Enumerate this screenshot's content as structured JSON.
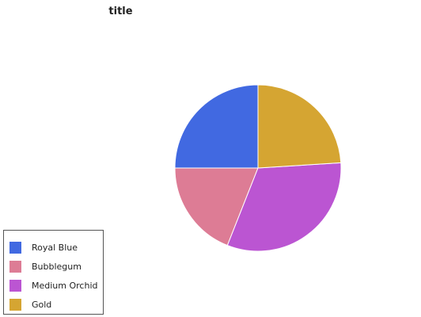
{
  "chart_data": {
    "type": "pie",
    "title": "title",
    "slices": [
      {
        "label": "Royal Blue",
        "value": 25,
        "color": "#4169e1"
      },
      {
        "label": "Bubblegum",
        "value": 19,
        "color": "#dd7c95"
      },
      {
        "label": "Medium Orchid",
        "value": 32,
        "color": "#bb55d2"
      },
      {
        "label": "Gold",
        "value": 24,
        "color": "#d5a532"
      }
    ],
    "start_angle_deg": 0,
    "direction": "counterclockwise from top",
    "legend": {
      "placement": "bottom-left",
      "entries": [
        "Royal Blue",
        "Bubblegum",
        "Medium Orchid",
        "Gold"
      ]
    }
  }
}
